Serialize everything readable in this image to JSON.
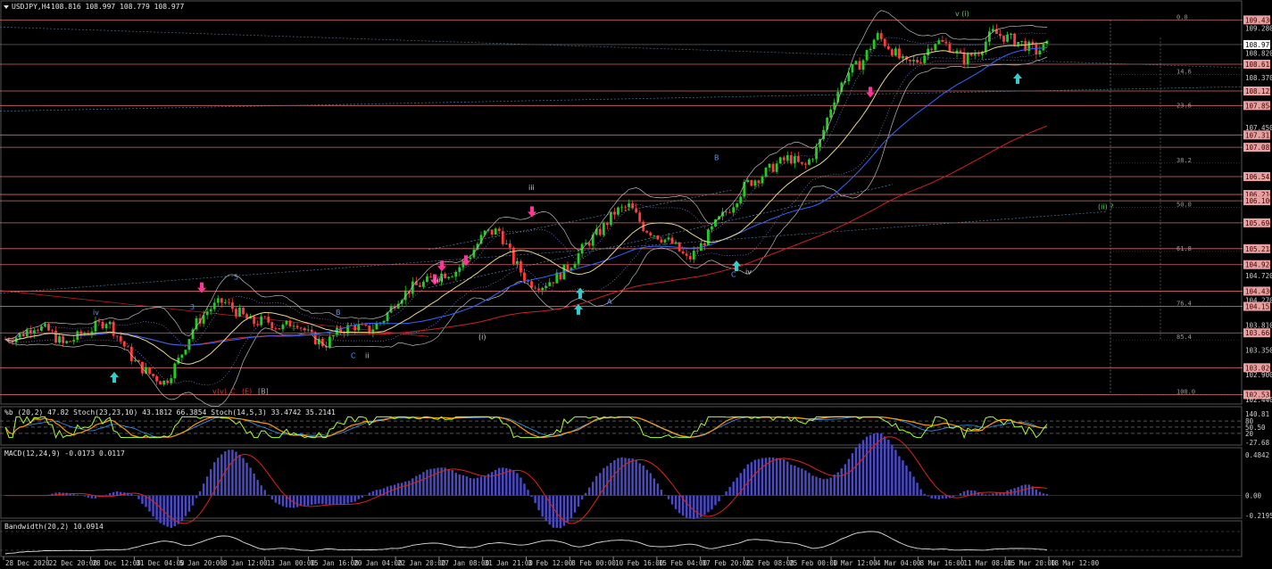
{
  "header": {
    "title": "USDJPY,H4",
    "ohlc": "108.816 108.997 108.779 108.977"
  },
  "colors": {
    "background": "#000000",
    "bull": "#22cc22",
    "bear": "#ff3b3b",
    "hline": "#d46a6a",
    "price_tag": "#e8a0a0",
    "ma_slow": "#cc2222",
    "ma_mid": "#3366ff",
    "ma_fast": "#e8d48a",
    "stoch_main": "#ff9900",
    "stoch_k": "#aaff33",
    "bb_line": "#3399ff",
    "macd_hist": "#4a4ac8",
    "macd_signal": "#dd2222",
    "bandwidth": "#e0e0e0",
    "arrow_up": "#33cccc",
    "arrow_down": "#ff3399"
  },
  "price_axis": {
    "labels": [
      "109.430",
      "109.280",
      "108.977",
      "108.820",
      "108.615",
      "108.370",
      "108.122",
      "107.854",
      "107.450",
      "107.312",
      "107.085",
      "106.545",
      "106.216",
      "106.100",
      "105.694",
      "105.218",
      "104.924",
      "104.720",
      "104.436",
      "104.270",
      "104.155",
      "103.810",
      "103.668",
      "103.350",
      "103.026",
      "102.900",
      "102.531",
      "102.440"
    ],
    "highlighted": [
      "109.430",
      "108.615",
      "108.122",
      "107.854",
      "107.312",
      "107.085",
      "106.545",
      "106.216",
      "106.100",
      "105.694",
      "105.218",
      "104.924",
      "104.436",
      "104.155",
      "103.668",
      "103.026",
      "102.531"
    ],
    "current": "108.977"
  },
  "fib_levels": [
    "0.0",
    "14.6",
    "23.6",
    "38.2",
    "50.0",
    "61.8",
    "76.4",
    "85.4",
    "100.0"
  ],
  "time_axis": [
    "28 Dec 2020",
    "22 Dec 20:00",
    "28 Dec 12:00",
    "31 Dec 04:00",
    "5 Jan 20:00",
    "8 Jan 12:00",
    "13 Jan 00:00",
    "15 Jan 16:00",
    "20 Jan 04:00",
    "22 Jan 20:00",
    "27 Jan 08:00",
    "31 Jan 21:00",
    "3 Feb 12:00",
    "8 Feb 00:00",
    "10 Feb 16:00",
    "15 Feb 04:00",
    "17 Feb 20:00",
    "22 Feb 08:00",
    "25 Feb 00:00",
    "1 Mar 12:00",
    "4 Mar 04:00",
    "8 Mar 16:00",
    "11 Mar 08:00",
    "15 Mar 20:00",
    "18 Mar 12:00"
  ],
  "wave_labels": [
    {
      "text": "(i)",
      "color": "#9be09b"
    },
    {
      "text": "(ii) ?",
      "color": "#55cc55"
    },
    {
      "text": "v (i)",
      "color": "#55cc55"
    },
    {
      "text": "iii",
      "color": "#cccccc"
    },
    {
      "text": "B",
      "color": "#5599ff"
    },
    {
      "text": "C",
      "color": "#5599ff"
    },
    {
      "text": "iv",
      "color": "#cccccc"
    },
    {
      "text": "(ii)",
      "color": "#cccccc"
    },
    {
      "text": "(i)",
      "color": "#cccccc"
    },
    {
      "text": "A",
      "color": "#5599ff"
    },
    {
      "text": "B",
      "color": "#5599ff"
    },
    {
      "text": "C",
      "color": "#5599ff"
    },
    {
      "text": "ii",
      "color": "#cccccc"
    },
    {
      "text": "5",
      "color": "#5599ff"
    },
    {
      "text": "3",
      "color": "#5599ff"
    },
    {
      "text": "iv",
      "color": "#5599ff"
    },
    {
      "text": "v",
      "color": "#dd3333"
    },
    {
      "text": "(v)",
      "color": "#dd3333"
    },
    {
      "text": "C",
      "color": "#dd3333"
    },
    {
      "text": "(E)",
      "color": "#dd3333"
    },
    {
      "text": "[B]",
      "color": "#aaaaaa"
    }
  ],
  "stoch_panel": {
    "header": "%b (20,2) 47.82  Stoch(23,23,10) 43.1812 66.3854  Stoch(14,5,3) 33.4742 35.2141",
    "axis": [
      "140.81",
      "80",
      "50.50",
      "20",
      "-27.68"
    ]
  },
  "macd_panel": {
    "header": "MACD(12,24,9) -0.0173 0.0117",
    "axis": [
      "0.4842",
      "0.00",
      "-0.2195"
    ]
  },
  "bandwidth_panel": {
    "header": "Bandwidth(20,2) 10.0914"
  },
  "chart_data": {
    "type": "candlestick",
    "title": "USDJPY,H4",
    "ylim": [
      102.44,
      109.6
    ],
    "close_path": [
      {
        "t": 0,
        "v": 103.55
      },
      {
        "t": 4,
        "v": 103.62
      },
      {
        "t": 8,
        "v": 103.8
      },
      {
        "t": 12,
        "v": 103.7
      },
      {
        "t": 16,
        "v": 103.45
      },
      {
        "t": 20,
        "v": 103.6
      },
      {
        "t": 24,
        "v": 103.75
      },
      {
        "t": 28,
        "v": 103.9
      },
      {
        "t": 32,
        "v": 103.5
      },
      {
        "t": 36,
        "v": 103.1
      },
      {
        "t": 40,
        "v": 102.9
      },
      {
        "t": 44,
        "v": 102.75
      },
      {
        "t": 48,
        "v": 103.2
      },
      {
        "t": 52,
        "v": 103.8
      },
      {
        "t": 56,
        "v": 104.1
      },
      {
        "t": 60,
        "v": 104.25
      },
      {
        "t": 64,
        "v": 104.05
      },
      {
        "t": 68,
        "v": 103.85
      },
      {
        "t": 72,
        "v": 103.9
      },
      {
        "t": 76,
        "v": 103.75
      },
      {
        "t": 80,
        "v": 103.9
      },
      {
        "t": 84,
        "v": 103.6
      },
      {
        "t": 88,
        "v": 103.45
      },
      {
        "t": 92,
        "v": 103.7
      },
      {
        "t": 96,
        "v": 103.8
      },
      {
        "t": 100,
        "v": 103.7
      },
      {
        "t": 104,
        "v": 103.9
      },
      {
        "t": 108,
        "v": 104.3
      },
      {
        "t": 112,
        "v": 104.5
      },
      {
        "t": 116,
        "v": 104.6
      },
      {
        "t": 120,
        "v": 104.75
      },
      {
        "t": 124,
        "v": 104.8
      },
      {
        "t": 128,
        "v": 105.1
      },
      {
        "t": 132,
        "v": 105.5
      },
      {
        "t": 136,
        "v": 105.55
      },
      {
        "t": 140,
        "v": 105.0
      },
      {
        "t": 144,
        "v": 104.6
      },
      {
        "t": 148,
        "v": 104.55
      },
      {
        "t": 152,
        "v": 104.7
      },
      {
        "t": 156,
        "v": 104.95
      },
      {
        "t": 160,
        "v": 105.3
      },
      {
        "t": 164,
        "v": 105.55
      },
      {
        "t": 168,
        "v": 105.9
      },
      {
        "t": 172,
        "v": 106.0
      },
      {
        "t": 176,
        "v": 105.6
      },
      {
        "t": 180,
        "v": 105.45
      },
      {
        "t": 184,
        "v": 105.3
      },
      {
        "t": 188,
        "v": 105.0
      },
      {
        "t": 192,
        "v": 105.3
      },
      {
        "t": 196,
        "v": 105.7
      },
      {
        "t": 200,
        "v": 106.0
      },
      {
        "t": 204,
        "v": 106.4
      },
      {
        "t": 208,
        "v": 106.55
      },
      {
        "t": 212,
        "v": 106.75
      },
      {
        "t": 216,
        "v": 106.9
      },
      {
        "t": 220,
        "v": 106.7
      },
      {
        "t": 224,
        "v": 107.1
      },
      {
        "t": 228,
        "v": 107.95
      },
      {
        "t": 232,
        "v": 108.45
      },
      {
        "t": 236,
        "v": 108.65
      },
      {
        "t": 240,
        "v": 109.15
      },
      {
        "t": 244,
        "v": 108.9
      },
      {
        "t": 248,
        "v": 108.6
      },
      {
        "t": 252,
        "v": 108.7
      },
      {
        "t": 256,
        "v": 109.05
      },
      {
        "t": 260,
        "v": 108.95
      },
      {
        "t": 264,
        "v": 108.7
      },
      {
        "t": 268,
        "v": 108.85
      },
      {
        "t": 272,
        "v": 109.2
      },
      {
        "t": 276,
        "v": 109.1
      },
      {
        "t": 280,
        "v": 109.0
      },
      {
        "t": 284,
        "v": 108.85
      },
      {
        "t": 288,
        "v": 108.98
      }
    ]
  }
}
